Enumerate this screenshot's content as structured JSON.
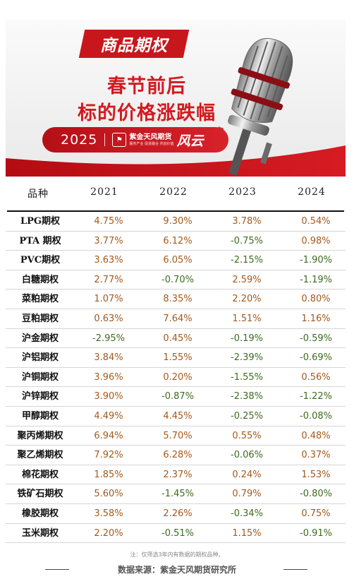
{
  "banner": {
    "category_tag": "商品期权",
    "headline_line1": "春节前后",
    "headline_line2": "标的价格涨跌幅",
    "year": "2025",
    "brand_name": "紫金天风期货",
    "brand_sub": "服务产业 促进融合 共创价值",
    "signature": "风云"
  },
  "table": {
    "headers": [
      "品种",
      "2021",
      "2022",
      "2023",
      "2024"
    ],
    "rows": [
      {
        "name": "LPG期权",
        "values": [
          "4.75%",
          "9.30%",
          "3.78%",
          "0.54%"
        ]
      },
      {
        "name": "PTA 期权",
        "values": [
          "3.77%",
          "6.12%",
          "-0.75%",
          "0.98%"
        ]
      },
      {
        "name": "PVC期权",
        "values": [
          "3.63%",
          "6.05%",
          "-2.15%",
          "-1.90%"
        ]
      },
      {
        "name": "白糖期权",
        "values": [
          "2.77%",
          "-0.70%",
          "2.59%",
          "-1.19%"
        ]
      },
      {
        "name": "菜粕期权",
        "values": [
          "1.07%",
          "8.35%",
          "2.20%",
          "0.80%"
        ]
      },
      {
        "name": "豆粕期权",
        "values": [
          "0.63%",
          "7.64%",
          "1.51%",
          "1.16%"
        ]
      },
      {
        "name": "沪金期权",
        "values": [
          "-2.95%",
          "0.45%",
          "-0.19%",
          "-0.59%"
        ]
      },
      {
        "name": "沪铝期权",
        "values": [
          "3.84%",
          "1.55%",
          "-2.39%",
          "-0.69%"
        ]
      },
      {
        "name": "沪铜期权",
        "values": [
          "3.96%",
          "0.20%",
          "-1.55%",
          "0.56%"
        ]
      },
      {
        "name": "沪锌期权",
        "values": [
          "3.90%",
          "-0.87%",
          "-2.38%",
          "-1.22%"
        ]
      },
      {
        "name": "甲醇期权",
        "values": [
          "4.49%",
          "4.45%",
          "-0.25%",
          "-0.08%"
        ]
      },
      {
        "name": "聚丙烯期权",
        "values": [
          "6.94%",
          "5.70%",
          "0.55%",
          "0.48%"
        ]
      },
      {
        "name": "聚乙烯期权",
        "values": [
          "7.92%",
          "6.28%",
          "-0.06%",
          "0.37%"
        ]
      },
      {
        "name": "棉花期权",
        "values": [
          "1.85%",
          "2.37%",
          "0.24%",
          "1.53%"
        ]
      },
      {
        "name": "铁矿石期权",
        "values": [
          "5.60%",
          "-1.45%",
          "0.79%",
          "-0.80%"
        ]
      },
      {
        "name": "橡胶期权",
        "values": [
          "3.58%",
          "2.26%",
          "-0.34%",
          "0.75%"
        ]
      },
      {
        "name": "玉米期权",
        "values": [
          "2.20%",
          "-0.51%",
          "1.15%",
          "-0.91%"
        ]
      }
    ]
  },
  "footer": {
    "note": "注：仅筛选3年内有数据的期权品种。",
    "source": "数据来源：紫金天风期货研究所"
  },
  "colors": {
    "brand_red": "#c8161d",
    "positive": "#a4591c",
    "negative": "#3e6b1f"
  },
  "icons": [
    "microphone-illustration",
    "brand-logo-icon"
  ]
}
